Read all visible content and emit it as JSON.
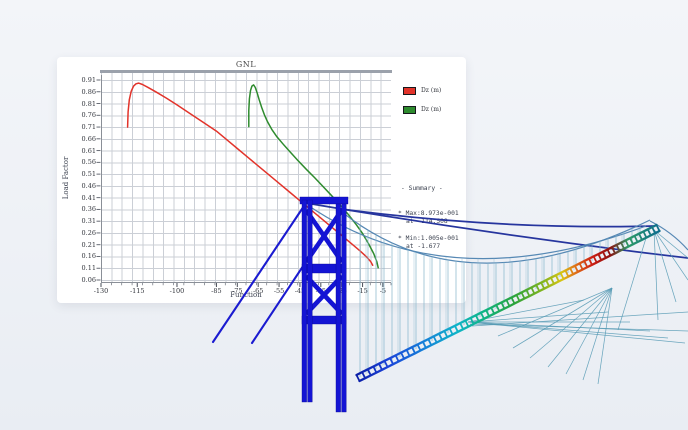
{
  "page": {
    "background_top": "#f3f5f9",
    "background_bottom": "#e9edf3"
  },
  "card": {
    "background": "#ffffff"
  },
  "chart_data": {
    "type": "line",
    "title": "GNL",
    "xlabel": "Function",
    "ylabel": "Load Factor",
    "grid": true,
    "legend_position": "right",
    "xlim": [
      -132,
      -3
    ],
    "ylim": [
      0.04,
      0.93
    ],
    "y_ticks": [
      "0.91",
      "0.86",
      "0.81",
      "0.76",
      "0.71",
      "0.66",
      "0.61",
      "0.56",
      "0.51",
      "0.46",
      "0.41",
      "0.36",
      "0.31",
      "0.26",
      "0.21",
      "0.16",
      "0.11",
      "0.06"
    ],
    "x_ticks": [
      {
        "label": "-130",
        "f": 0.0
      },
      {
        "label": "-115",
        "f": 0.125
      },
      {
        "label": "-100",
        "f": 0.262
      },
      {
        "label": "-85",
        "f": 0.398
      },
      {
        "label": "-75",
        "f": 0.47
      },
      {
        "label": "-65",
        "f": 0.542
      },
      {
        "label": "-55",
        "f": 0.614
      },
      {
        "label": "-45",
        "f": 0.686
      },
      {
        "label": "-35",
        "f": 0.758
      },
      {
        "label": "-25",
        "f": 0.83
      },
      {
        "label": "-15",
        "f": 0.902
      },
      {
        "label": "-5",
        "f": 0.972
      }
    ],
    "series": [
      {
        "name": "Dz (m)",
        "color": "#e2332a",
        "points": [
          [
            -119,
            0.71
          ],
          [
            -118.8,
            0.775
          ],
          [
            -118.3,
            0.826
          ],
          [
            -117.5,
            0.862
          ],
          [
            -116.5,
            0.884
          ],
          [
            -115.5,
            0.894
          ],
          [
            -114.5,
            0.897
          ],
          [
            -113,
            0.891
          ],
          [
            -111,
            0.879
          ],
          [
            -108,
            0.86
          ],
          [
            -104,
            0.833
          ],
          [
            -100,
            0.804
          ],
          [
            -95,
            0.767
          ],
          [
            -90,
            0.73
          ],
          [
            -85,
            0.693
          ],
          [
            -80,
            0.656
          ],
          [
            -75,
            0.619
          ],
          [
            -70,
            0.582
          ],
          [
            -65,
            0.545
          ],
          [
            -60,
            0.508
          ],
          [
            -55,
            0.471
          ],
          [
            -50,
            0.434
          ],
          [
            -45,
            0.397
          ],
          [
            -40,
            0.36
          ],
          [
            -35,
            0.323
          ],
          [
            -30,
            0.286
          ],
          [
            -25,
            0.249
          ],
          [
            -20,
            0.212
          ],
          [
            -16,
            0.182
          ],
          [
            -13,
            0.158
          ],
          [
            -11,
            0.138
          ],
          [
            -10,
            0.123
          ]
        ]
      },
      {
        "name": "Dz (m)",
        "color": "#2e8b2e",
        "points": [
          [
            -69.5,
            0.712
          ],
          [
            -69.5,
            0.78
          ],
          [
            -69.2,
            0.83
          ],
          [
            -68.7,
            0.865
          ],
          [
            -68,
            0.884
          ],
          [
            -67.2,
            0.889
          ],
          [
            -66.4,
            0.878
          ],
          [
            -65.5,
            0.856
          ],
          [
            -64.5,
            0.826
          ],
          [
            -63.3,
            0.793
          ],
          [
            -62,
            0.762
          ],
          [
            -60.5,
            0.732
          ],
          [
            -58.5,
            0.7
          ],
          [
            -56,
            0.668
          ],
          [
            -53,
            0.637
          ],
          [
            -50,
            0.607
          ],
          [
            -46,
            0.568
          ],
          [
            -42,
            0.531
          ],
          [
            -38,
            0.495
          ],
          [
            -34,
            0.458
          ],
          [
            -30,
            0.42
          ],
          [
            -26,
            0.381
          ],
          [
            -22,
            0.34
          ],
          [
            -18,
            0.295
          ],
          [
            -15,
            0.257
          ],
          [
            -12,
            0.213
          ],
          [
            -9.5,
            0.172
          ],
          [
            -8,
            0.138
          ],
          [
            -7.3,
            0.112
          ]
        ]
      }
    ],
    "summary": {
      "heading": "- Summary -",
      "max_line": "* Max:8.973e-001",
      "max_at": "at -114.508",
      "min_line": "* Min:1.005e-001",
      "min_at": "at -1.677"
    }
  },
  "model": {
    "tower_color": "#1414d4",
    "stay_color": "#1b1bd0",
    "cable_color": "#26359e",
    "suspension_color": "#4d82b0",
    "hanger_color": "#86b6cc",
    "net_color": "#559ab4",
    "deck_gradient": [
      [
        0,
        "#0b1fa8"
      ],
      [
        0.1,
        "#1a43d8"
      ],
      [
        0.22,
        "#1580d8"
      ],
      [
        0.33,
        "#0fb4c8"
      ],
      [
        0.42,
        "#0fb483"
      ],
      [
        0.52,
        "#2aa33c"
      ],
      [
        0.62,
        "#86b51e"
      ],
      [
        0.68,
        "#d8c414"
      ],
      [
        0.72,
        "#e07818"
      ],
      [
        0.78,
        "#cc1f14"
      ],
      [
        0.84,
        "#8c1010"
      ],
      [
        0.9,
        "#2d9a66"
      ],
      [
        1,
        "#0e6e8c"
      ]
    ]
  }
}
